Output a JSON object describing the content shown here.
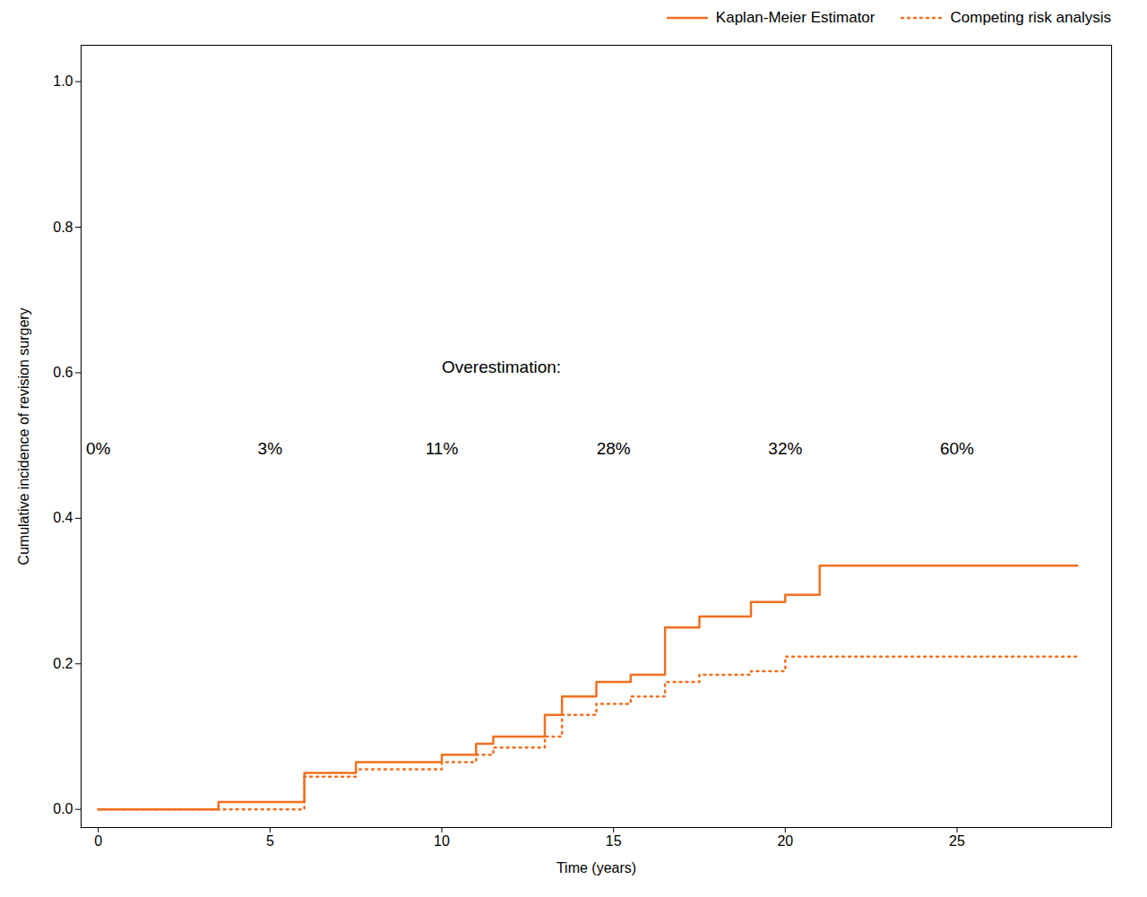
{
  "chart_data": {
    "type": "line",
    "xlabel": "Time (years)",
    "ylabel": "Cumulative incidence of revision surgery",
    "xlim": [
      -0.5,
      29.5
    ],
    "ylim": [
      -0.025,
      1.05
    ],
    "xticks": [
      0,
      5,
      10,
      15,
      20,
      25
    ],
    "yticks": [
      {
        "value": 0.0,
        "label": "0.0"
      },
      0.2,
      0.4,
      0.6,
      0.8,
      {
        "value": 1.0,
        "label": "1.0"
      }
    ],
    "grid": false,
    "legend": "upper right",
    "series": [
      {
        "name": "Kaplan-Meier Estimator",
        "color": "#F07020",
        "line_style": "solid",
        "x": [
          0,
          3.5,
          3.5,
          6.0,
          6.0,
          7.5,
          7.5,
          10.0,
          10.0,
          11.0,
          11.0,
          11.5,
          11.5,
          13.0,
          13.0,
          13.5,
          13.5,
          14.5,
          14.5,
          15.5,
          15.5,
          16.5,
          16.5,
          17.5,
          17.5,
          19.0,
          19.0,
          20.0,
          20.0,
          21.0,
          21.0,
          28.5
        ],
        "values": [
          0.0,
          0.0,
          0.01,
          0.01,
          0.05,
          0.05,
          0.065,
          0.065,
          0.075,
          0.075,
          0.09,
          0.09,
          0.1,
          0.1,
          0.13,
          0.13,
          0.155,
          0.155,
          0.175,
          0.175,
          0.185,
          0.185,
          0.25,
          0.25,
          0.265,
          0.265,
          0.285,
          0.285,
          0.295,
          0.295,
          0.335,
          0.335
        ]
      },
      {
        "name": "Competing risk analysis",
        "color": "#F07020",
        "line_style": "dotted",
        "x": [
          0,
          6.0,
          6.0,
          7.5,
          7.5,
          10.0,
          10.0,
          11.0,
          11.0,
          11.5,
          11.5,
          13.0,
          13.0,
          13.5,
          13.5,
          14.5,
          14.5,
          15.5,
          15.5,
          16.5,
          16.5,
          17.5,
          17.5,
          19.0,
          19.0,
          20.0,
          20.0,
          28.5
        ],
        "values": [
          0.0,
          0.0,
          0.045,
          0.045,
          0.055,
          0.055,
          0.065,
          0.065,
          0.075,
          0.075,
          0.085,
          0.085,
          0.1,
          0.1,
          0.13,
          0.13,
          0.145,
          0.145,
          0.155,
          0.155,
          0.175,
          0.175,
          0.185,
          0.185,
          0.19,
          0.19,
          0.21,
          0.21
        ]
      }
    ],
    "annotations": [
      {
        "text": "Overestimation:",
        "x": 10,
        "y": 0.6
      },
      {
        "text": "0%",
        "x": 0,
        "y": 0.505
      },
      {
        "text": "3%",
        "x": 5,
        "y": 0.505
      },
      {
        "text": "11%",
        "x": 10,
        "y": 0.505
      },
      {
        "text": "28%",
        "x": 15,
        "y": 0.505
      },
      {
        "text": "32%",
        "x": 20,
        "y": 0.505
      },
      {
        "text": "60%",
        "x": 25,
        "y": 0.505
      }
    ]
  }
}
